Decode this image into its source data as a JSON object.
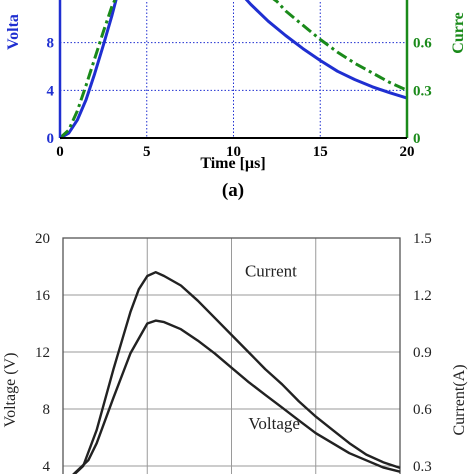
{
  "chart_data": [
    {
      "type": "line",
      "title": "",
      "panel_label": "(a)",
      "xlabel": "Time [µs]",
      "ylabel_left": "Volta",
      "ylabel_right": "Curre",
      "xlim": [
        0,
        20
      ],
      "ylim_left": [
        0,
        12
      ],
      "ylim_right": [
        0,
        0.9
      ],
      "xticks": [
        "0",
        "5",
        "10",
        "15",
        "20"
      ],
      "yticks_left": [
        "0",
        "4",
        "8"
      ],
      "yticks_right": [
        "0",
        "0.3",
        "0.6"
      ],
      "grid": true,
      "left_axis_color": "#1f2fd1",
      "right_axis_color": "#1a8a1a",
      "series": [
        {
          "axis": "left",
          "color": "#1f2fd1",
          "style": "solid",
          "x": [
            0,
            0.5,
            1,
            1.5,
            2,
            2.5,
            3,
            3.3,
            10.5,
            11,
            12,
            13,
            14,
            15,
            16,
            17,
            18,
            19,
            20
          ],
          "y": [
            0,
            0.4,
            1.5,
            3.2,
            5.4,
            7.8,
            10.3,
            12,
            12,
            11.2,
            9.8,
            8.6,
            7.5,
            6.5,
            5.6,
            4.9,
            4.3,
            3.8,
            3.35
          ]
        },
        {
          "axis": "right",
          "color": "#1a8a1a",
          "style": "dashdot",
          "x": [
            0,
            0.5,
            1,
            1.5,
            2,
            2.5,
            3,
            3.3,
            12,
            12.5,
            13,
            14,
            15,
            16,
            17,
            18,
            19,
            20
          ],
          "y": [
            0,
            0.05,
            0.17,
            0.33,
            0.5,
            0.67,
            0.83,
            0.9,
            0.9,
            0.86,
            0.8,
            0.71,
            0.62,
            0.54,
            0.47,
            0.41,
            0.35,
            0.3
          ]
        }
      ]
    },
    {
      "type": "line",
      "title": "",
      "xlabel": "",
      "ylabel_left": "Voltage (V)",
      "ylabel_right": "Current(A)",
      "xlim": [
        0,
        20
      ],
      "ylim_left": [
        4,
        20
      ],
      "ylim_right": [
        0.3,
        1.5
      ],
      "yticks_left": [
        "4",
        "8",
        "12",
        "16",
        "20"
      ],
      "yticks_right": [
        "0.3",
        "0.6",
        "0.9",
        "1.2",
        "1.5"
      ],
      "grid": true,
      "series": [
        {
          "name": "Current",
          "axis": "right",
          "color": "#222222",
          "x": [
            0.6,
            1.2,
            2,
            3,
            4,
            4.5,
            5,
            5.5,
            6,
            7,
            8,
            9,
            10,
            11,
            12,
            13,
            14,
            15,
            16,
            17,
            18,
            19,
            20
          ],
          "y": [
            0.25,
            0.3,
            0.49,
            0.81,
            1.11,
            1.23,
            1.3,
            1.32,
            1.3,
            1.25,
            1.17,
            1.08,
            0.99,
            0.9,
            0.81,
            0.73,
            0.64,
            0.56,
            0.49,
            0.42,
            0.36,
            0.32,
            0.29
          ]
        },
        {
          "name": "Voltage",
          "axis": "left",
          "color": "#222222",
          "x": [
            0.6,
            1.5,
            2,
            3,
            4,
            5,
            5.5,
            6,
            7,
            8,
            9,
            10,
            11,
            12,
            13,
            14,
            15,
            16,
            17,
            18,
            19,
            20
          ],
          "y": [
            3.4,
            4.4,
            5.6,
            8.8,
            11.9,
            14,
            14.2,
            14.1,
            13.6,
            12.8,
            11.9,
            10.9,
            9.9,
            9.0,
            8.1,
            7.2,
            6.3,
            5.6,
            4.9,
            4.4,
            3.9,
            3.6
          ]
        }
      ],
      "annotations": [
        {
          "text": "Current",
          "x": 10.8,
          "y_left": 17.3
        },
        {
          "text": "Voltage",
          "x": 11.0,
          "y_left": 6.6
        }
      ]
    }
  ]
}
